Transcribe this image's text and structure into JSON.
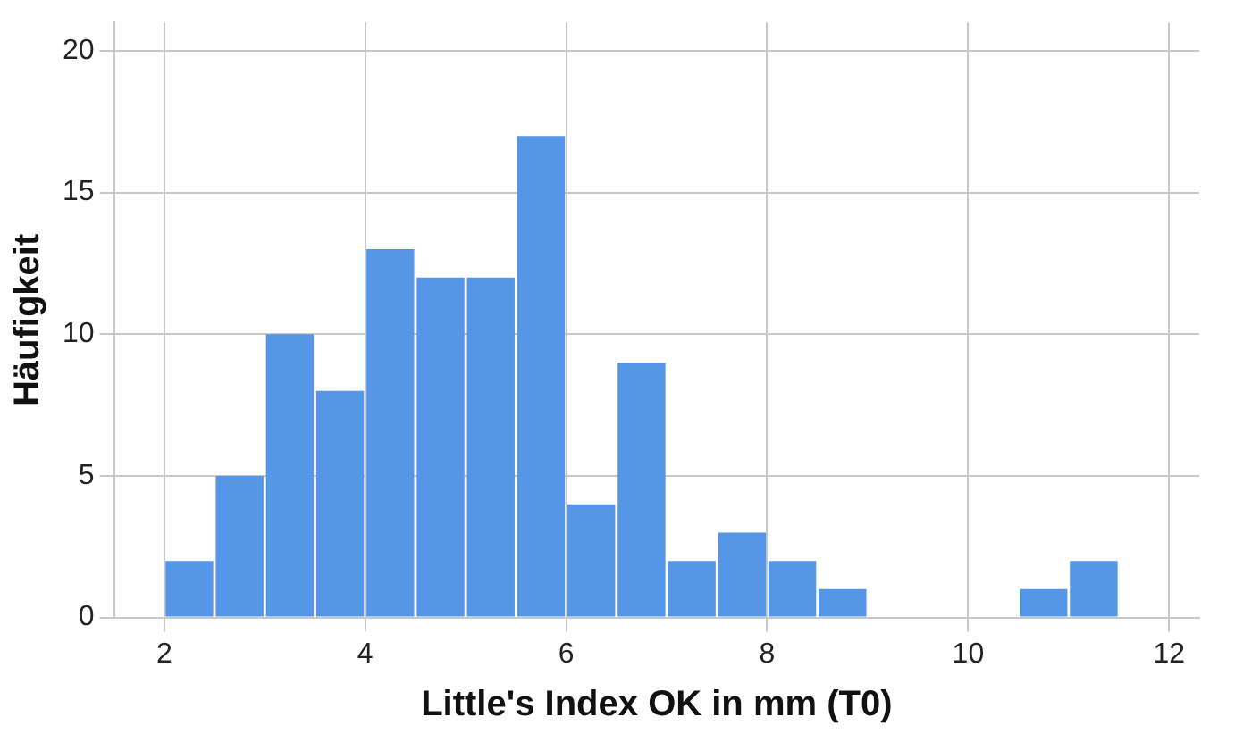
{
  "chart_data": {
    "type": "histogram",
    "xlabel": "Little's Index OK in mm (T0)",
    "ylabel": "Häufigkeit",
    "bins": [
      2,
      2.5,
      3,
      3.5,
      4,
      4.5,
      5,
      5.5,
      6,
      6.5,
      7,
      7.5,
      8,
      8.5,
      9,
      9.5,
      10,
      10.5,
      11,
      11.5
    ],
    "values": [
      2,
      5,
      10,
      8,
      13,
      12,
      12,
      17,
      4,
      9,
      2,
      3,
      2,
      1,
      0,
      0,
      0,
      1,
      2
    ],
    "color": "#5596e6",
    "xlim": [
      1.5,
      12.3
    ],
    "xticks": [
      2,
      4,
      6,
      8,
      10,
      12
    ],
    "ylim": [
      0,
      21
    ],
    "yticks": [
      0,
      5,
      10,
      15,
      20
    ],
    "grid": true,
    "legend": false
  }
}
